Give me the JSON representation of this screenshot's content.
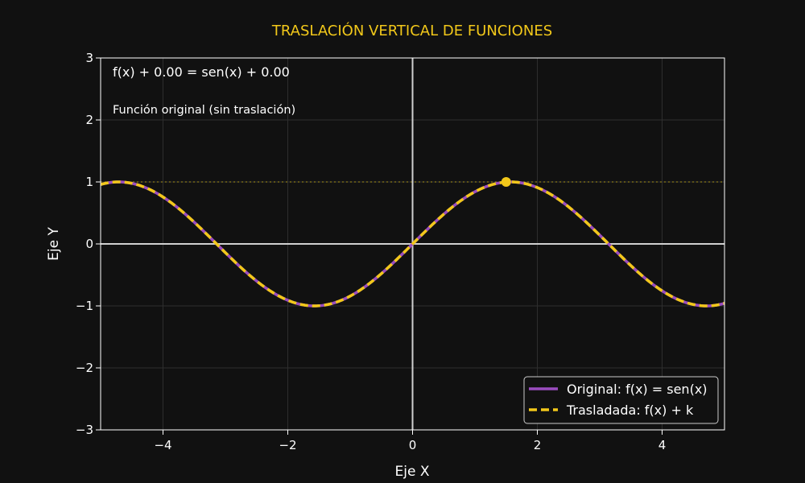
{
  "chart_data": {
    "type": "line",
    "title": "TRASLACIÓN VERTICAL DE FUNCIONES",
    "xlabel": "Eje X",
    "ylabel": "Eje Y",
    "xlim": [
      -5,
      5
    ],
    "ylim": [
      -3,
      3
    ],
    "x_ticks": [
      -4,
      -2,
      0,
      2,
      4
    ],
    "y_ticks": [
      -3,
      -2,
      -1,
      0,
      1,
      2,
      3
    ],
    "x_tick_labels": [
      "−4",
      "−2",
      "0",
      "2",
      "4"
    ],
    "y_tick_labels": [
      "−3",
      "−2",
      "−1",
      "0",
      "1",
      "2",
      "3"
    ],
    "grid": true,
    "k": 0,
    "series": [
      {
        "name": "Original: f(x) = sen(x)",
        "function": "sin(x)",
        "color": "#9b4dbf",
        "style": "solid"
      },
      {
        "name": "Trasladada: f(x) + k",
        "function": "sin(x) + k",
        "color": "#f2c81a",
        "style": "dashed"
      }
    ],
    "reference_line": {
      "y": 1,
      "color": "#8a7a1a",
      "style": "dotted"
    },
    "highlight_point": {
      "x": 1.5,
      "y": 1.0,
      "color": "#f2c81a"
    },
    "annotations": {
      "equation": "f(x) + 0.00 = sen(x) + 0.00",
      "note": "Función original (sin traslación)"
    },
    "legend": {
      "position": "bottom-right"
    }
  }
}
